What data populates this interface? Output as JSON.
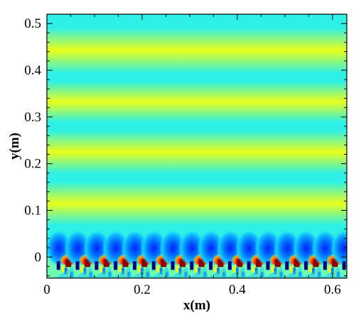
{
  "chart_data": {
    "type": "heatmap",
    "title": "",
    "xlabel": "x(m)",
    "ylabel": "y(m)",
    "xlim": [
      0,
      0.63
    ],
    "ylim": [
      -0.045,
      0.52
    ],
    "x_ticks": [
      "0",
      "0.2",
      "0.4",
      "0.6"
    ],
    "x_tick_values": [
      0,
      0.2,
      0.4,
      0.6
    ],
    "y_ticks": [
      "0",
      "0.1",
      "0.2",
      "0.3",
      "0.4",
      "0.5"
    ],
    "y_tick_values": [
      0,
      0.1,
      0.2,
      0.3,
      0.4,
      0.5
    ],
    "colormap": [
      "#00007f",
      "#0000ff",
      "#007fff",
      "#00e5ff",
      "#7fffb0",
      "#ffff00",
      "#ff7f00",
      "#ff0000",
      "#7f0000"
    ],
    "legend": "none",
    "grid": false,
    "bands": [
      {
        "y_from": 0.47,
        "y_to": 0.52,
        "level": "cyan"
      },
      {
        "y_from": 0.415,
        "y_to": 0.47,
        "level": "yellow"
      },
      {
        "y_from": 0.355,
        "y_to": 0.415,
        "level": "cyan"
      },
      {
        "y_from": 0.31,
        "y_to": 0.355,
        "level": "yellow"
      },
      {
        "y_from": 0.25,
        "y_to": 0.31,
        "level": "cyan"
      },
      {
        "y_from": 0.2,
        "y_to": 0.25,
        "level": "yellow"
      },
      {
        "y_from": 0.14,
        "y_to": 0.2,
        "level": "cyan"
      },
      {
        "y_from": 0.09,
        "y_to": 0.14,
        "level": "yellow"
      },
      {
        "y_from": 0.03,
        "y_to": 0.09,
        "level": "cyan"
      }
    ],
    "wave_centers_x": [
      0.025,
      0.065,
      0.105,
      0.145,
      0.185,
      0.225,
      0.265,
      0.305,
      0.345,
      0.385,
      0.425,
      0.465,
      0.505,
      0.545,
      0.585,
      0.625
    ],
    "surface_peak_y": 0.0,
    "trough_y": 0.025
  }
}
